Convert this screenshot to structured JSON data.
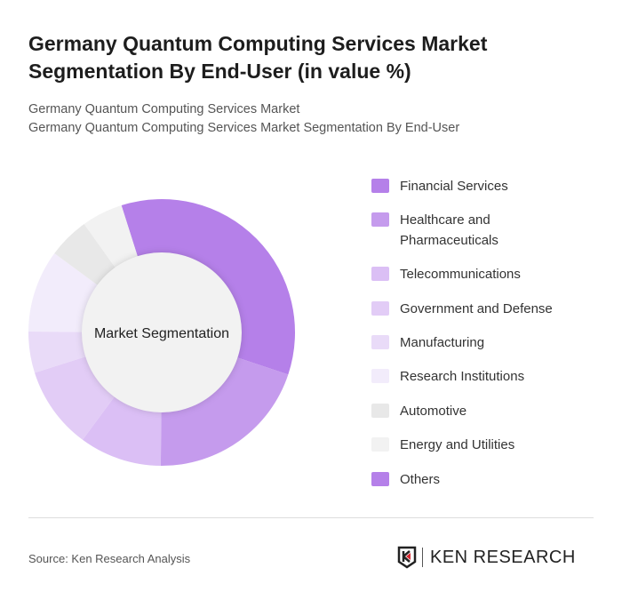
{
  "title": "Germany Quantum Computing Services Market Segmentation By End-User (in value %)",
  "subtitle1": "Germany Quantum Computing Services Market",
  "subtitle2": "Germany Quantum Computing Services Market Segmentation By End-User",
  "source": "Source: Ken Research Analysis",
  "logo_text": "KEN RESEARCH",
  "chart_data": {
    "type": "pie",
    "center_label": "Market Segmentation",
    "categories": [
      "Financial Services",
      "Healthcare and Pharmaceuticals",
      "Telecommunications",
      "Government and Defense",
      "Manufacturing",
      "Research Institutions",
      "Automotive",
      "Energy and Utilities",
      "Others"
    ],
    "values": [
      35,
      20,
      10,
      10,
      5,
      10,
      5,
      5,
      0
    ],
    "colors": [
      "#b580e9",
      "#c59bed",
      "#dbbff5",
      "#e2ccf6",
      "#e9dbf8",
      "#f2ecfb",
      "#e8e8e8",
      "#f2f2f2",
      "#b580e9"
    ],
    "legend": "right",
    "start_angle_deg": -17.6
  }
}
